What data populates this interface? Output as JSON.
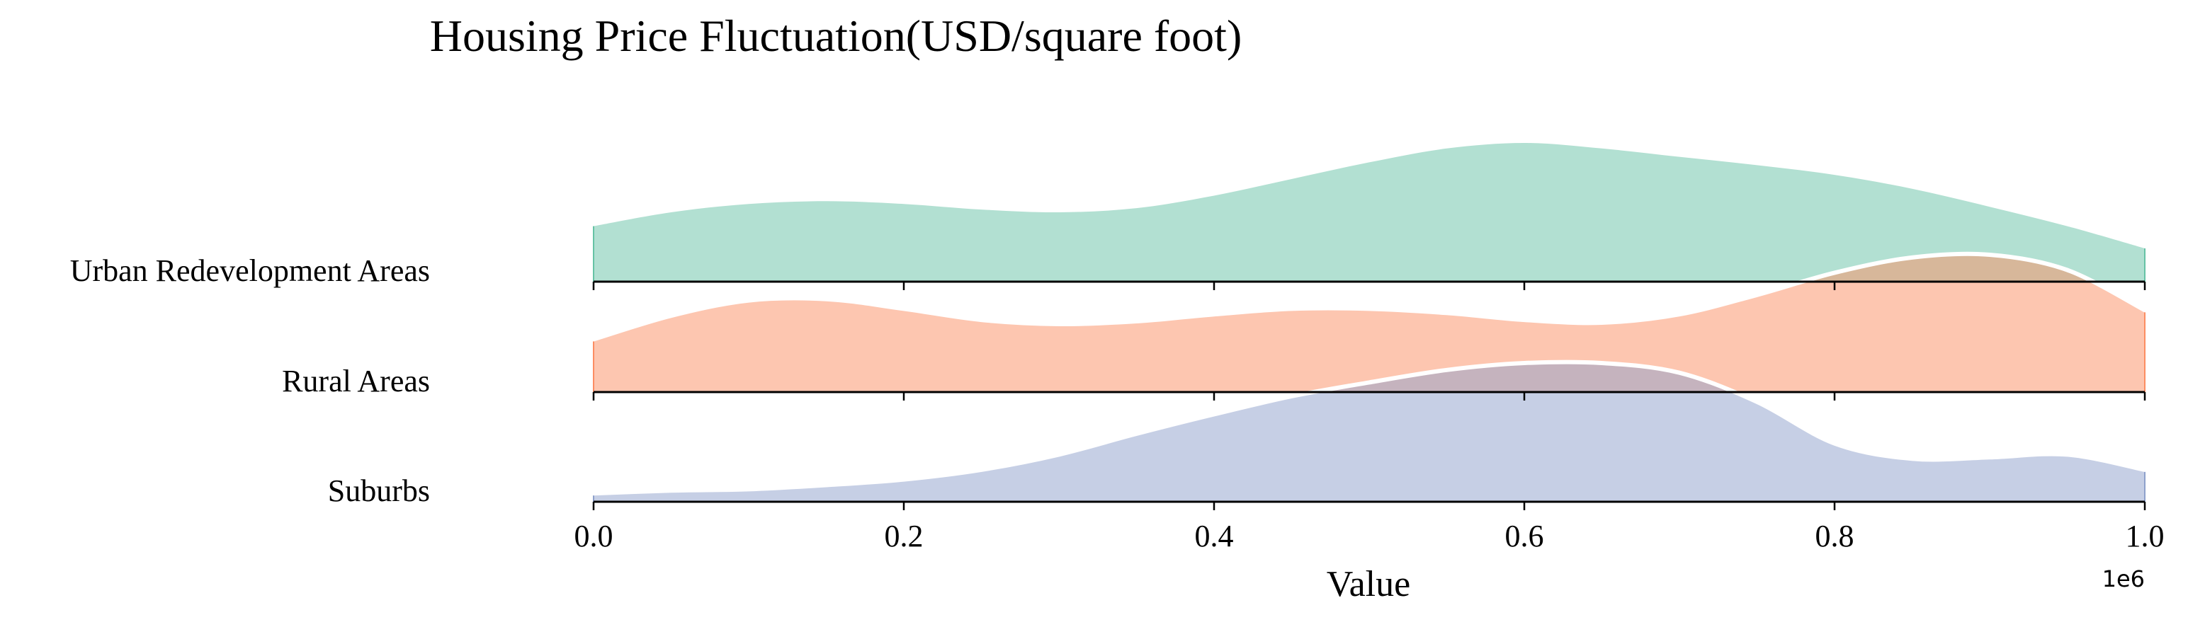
{
  "chart_data": {
    "type": "ridgeline",
    "title": "Housing Price Fluctuation(USD/square foot)",
    "xlabel": "Value",
    "x_offset_label": "1e6",
    "xlim": [
      0,
      1000000
    ],
    "x_ticks": [
      0,
      200000,
      400000,
      600000,
      800000,
      1000000
    ],
    "x_tick_labels": [
      "0.0",
      "0.2",
      "0.4",
      "0.6",
      "0.8",
      "1.0"
    ],
    "series": [
      {
        "name": "Urban Redevelopment Areas",
        "color": "#66c2a5",
        "x": [
          0,
          50000,
          100000,
          150000,
          200000,
          250000,
          300000,
          350000,
          400000,
          450000,
          500000,
          550000,
          600000,
          650000,
          700000,
          750000,
          800000,
          850000,
          900000,
          950000,
          1000000
        ],
        "density": [
          0.4,
          0.5,
          0.56,
          0.58,
          0.56,
          0.52,
          0.5,
          0.53,
          0.62,
          0.74,
          0.86,
          0.96,
          1.0,
          0.96,
          0.9,
          0.84,
          0.77,
          0.67,
          0.54,
          0.4,
          0.24
        ]
      },
      {
        "name": "Rural Areas",
        "color": "#fc8d62",
        "x": [
          0,
          50000,
          100000,
          150000,
          200000,
          250000,
          300000,
          350000,
          400000,
          450000,
          500000,
          550000,
          600000,
          650000,
          700000,
          750000,
          800000,
          850000,
          900000,
          950000,
          1000000
        ],
        "density": [
          0.38,
          0.55,
          0.66,
          0.67,
          0.6,
          0.52,
          0.49,
          0.51,
          0.56,
          0.6,
          0.6,
          0.57,
          0.52,
          0.5,
          0.56,
          0.7,
          0.86,
          0.97,
          0.99,
          0.88,
          0.59
        ]
      },
      {
        "name": "Suburbs",
        "color": "#8da0cb",
        "x": [
          0,
          50000,
          100000,
          150000,
          200000,
          250000,
          300000,
          350000,
          400000,
          450000,
          500000,
          550000,
          600000,
          650000,
          700000,
          750000,
          800000,
          850000,
          900000,
          950000,
          1000000
        ],
        "density": [
          0.06,
          0.08,
          0.09,
          0.12,
          0.16,
          0.23,
          0.34,
          0.49,
          0.63,
          0.76,
          0.86,
          0.95,
          1.0,
          1.0,
          0.93,
          0.72,
          0.42,
          0.31,
          0.32,
          0.34,
          0.23
        ]
      }
    ]
  }
}
